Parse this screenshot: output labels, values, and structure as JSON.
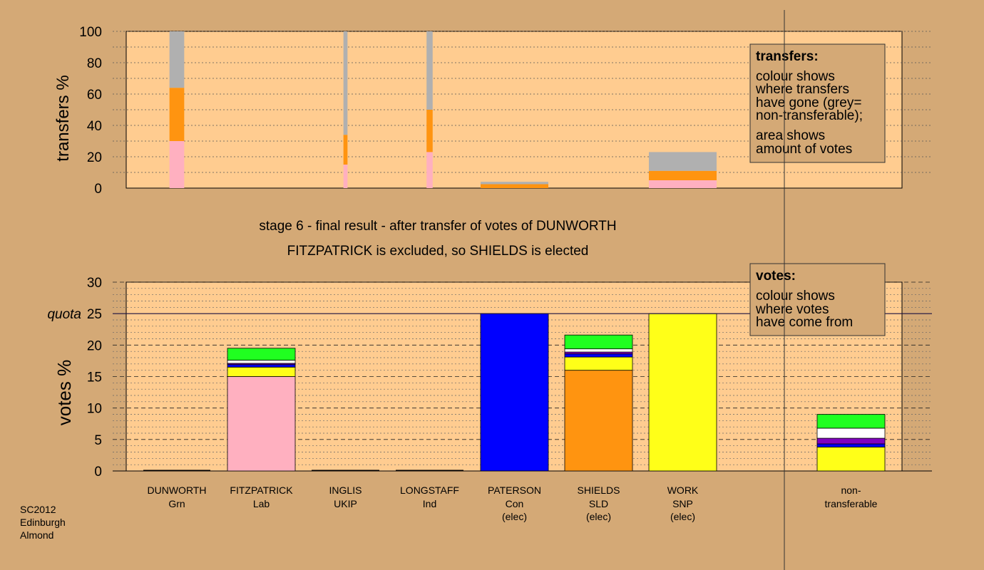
{
  "colors": {
    "page_background": "#d4a976",
    "plot_background": "#ffcc90",
    "Lab": "#ffb0c0",
    "SLD": "#ff9410",
    "Con": "#0000ff",
    "SNP": "#ffff18",
    "Grn": "#20ff20",
    "Ind": "#ffffff",
    "UKIP": "#8000c0",
    "non_transferable": "#b0b0b0"
  },
  "footer": {
    "line1": "SC2012",
    "line2": "Edinburgh",
    "line3": "Almond"
  },
  "stage_title": "stage 6 - final result - after transfer of votes of DUNWORTH",
  "stage_subtitle": "FITZPATRICK is excluded, so SHIELDS is elected",
  "chart_data": [
    {
      "type": "bar",
      "ylabel": "transfers %",
      "ylim": [
        0,
        100
      ],
      "yticks": [
        0,
        20,
        40,
        60,
        80,
        100
      ],
      "legend": {
        "title": "transfers:",
        "lines": [
          "colour shows",
          "where transfers",
          "have gone (grey=",
          "non-transferable);",
          "area shows",
          "amount of votes"
        ]
      },
      "columns": [
        {
          "candidate": "DUNWORTH",
          "width_pct_of_slot": 22,
          "segments": [
            {
              "to": "Lab",
              "value": 30
            },
            {
              "to": "SLD",
              "value": 34
            },
            {
              "to": "non_transferable",
              "value": 36
            }
          ]
        },
        {
          "candidate": "INGLIS",
          "width_pct_of_slot": 6,
          "segments": [
            {
              "to": "Lab",
              "value": 15
            },
            {
              "to": "SLD",
              "value": 19
            },
            {
              "to": "non_transferable",
              "value": 66
            }
          ]
        },
        {
          "candidate": "LONGSTAFF",
          "width_pct_of_slot": 9,
          "segments": [
            {
              "to": "Lab",
              "value": 23
            },
            {
              "to": "SLD",
              "value": 27
            },
            {
              "to": "non_transferable",
              "value": 50
            }
          ]
        },
        {
          "candidate": "PATERSON",
          "width_pct_of_slot": 100,
          "segments": [
            {
              "to": "SLD",
              "value": 2.5
            },
            {
              "to": "non_transferable",
              "value": 1.5
            }
          ]
        },
        {
          "candidate": "WORK",
          "width_pct_of_slot": 100,
          "segments": [
            {
              "to": "Lab",
              "value": 5
            },
            {
              "to": "SLD",
              "value": 6
            },
            {
              "to": "non_transferable",
              "value": 12
            }
          ]
        }
      ]
    },
    {
      "type": "bar",
      "ylabel": "votes %",
      "ylim": [
        0,
        30
      ],
      "yticks": [
        0,
        5,
        10,
        15,
        20,
        25,
        30
      ],
      "quota": {
        "label": "quota",
        "value": 25
      },
      "legend": {
        "title": "votes:",
        "lines": [
          "colour shows",
          "where votes",
          "have come from"
        ]
      },
      "categories": [
        {
          "name": "DUNWORTH",
          "party": "Grn",
          "status": ""
        },
        {
          "name": "FITZPATRICK",
          "party": "Lab",
          "status": ""
        },
        {
          "name": "INGLIS",
          "party": "UKIP",
          "status": ""
        },
        {
          "name": "LONGSTAFF",
          "party": "Ind",
          "status": ""
        },
        {
          "name": "PATERSON",
          "party": "Con",
          "status": "(elec)"
        },
        {
          "name": "SHIELDS",
          "party": "SLD",
          "status": "(elec)"
        },
        {
          "name": "WORK",
          "party": "SNP",
          "status": "(elec)"
        },
        {
          "name": "non-",
          "party": "transferable",
          "status": ""
        }
      ],
      "stacks": [
        [],
        [
          {
            "from": "Lab",
            "value": 15
          },
          {
            "from": "SNP",
            "value": 1.5
          },
          {
            "from": "Con",
            "value": 0.4
          },
          {
            "from": "UKIP",
            "value": 0.2
          },
          {
            "from": "Ind",
            "value": 0.5
          },
          {
            "from": "Grn",
            "value": 1.9
          }
        ],
        [],
        [],
        [
          {
            "from": "Con",
            "value": 25
          }
        ],
        [
          {
            "from": "SLD",
            "value": 16
          },
          {
            "from": "SNP",
            "value": 2.1
          },
          {
            "from": "Con",
            "value": 0.5
          },
          {
            "from": "UKIP",
            "value": 0.3
          },
          {
            "from": "Ind",
            "value": 0.5
          },
          {
            "from": "Grn",
            "value": 2.2
          }
        ],
        [
          {
            "from": "SNP",
            "value": 25
          }
        ],
        [
          {
            "from": "SNP",
            "value": 3.8
          },
          {
            "from": "Con",
            "value": 0.5
          },
          {
            "from": "UKIP",
            "value": 0.9
          },
          {
            "from": "Ind",
            "value": 1.6
          },
          {
            "from": "Grn",
            "value": 2.2
          }
        ]
      ]
    }
  ]
}
